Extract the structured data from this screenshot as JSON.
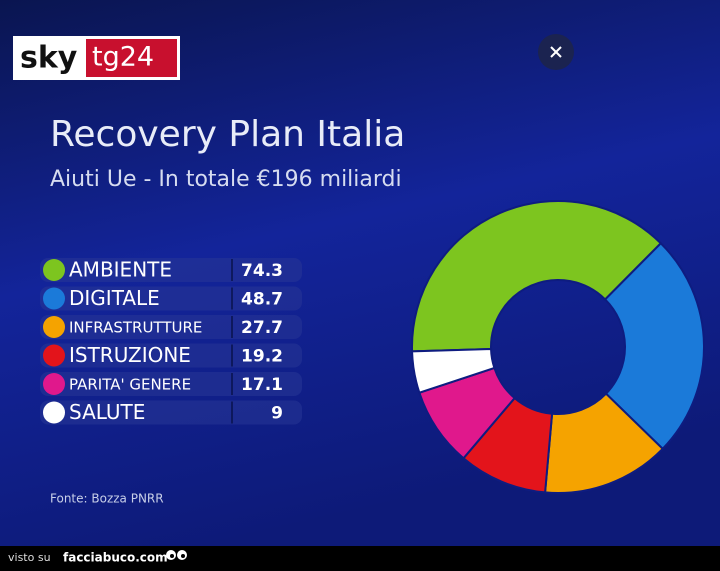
{
  "logo": {
    "left": "sky",
    "right": "tg24"
  },
  "chart_data": {
    "type": "donut",
    "title": "Recovery Plan Italia",
    "subtitle": "Aiuti Ue - In totale €196 miliardi",
    "categories": [
      "AMBIENTE",
      "DIGITALE",
      "INFRASTRUTTURE",
      "ISTRUZIONE",
      "PARITA' GENERE",
      "SALUTE"
    ],
    "values": [
      74.3,
      48.7,
      27.7,
      19.2,
      17.1,
      9
    ],
    "colors": [
      "#7dc51f",
      "#1b7ad9",
      "#f5a300",
      "#e3141b",
      "#e0188c",
      "#ffffff"
    ],
    "source": "Fonte: Bozza PNRR"
  },
  "footer": {
    "prefix": "visto su",
    "site": "facciabuco.com"
  }
}
